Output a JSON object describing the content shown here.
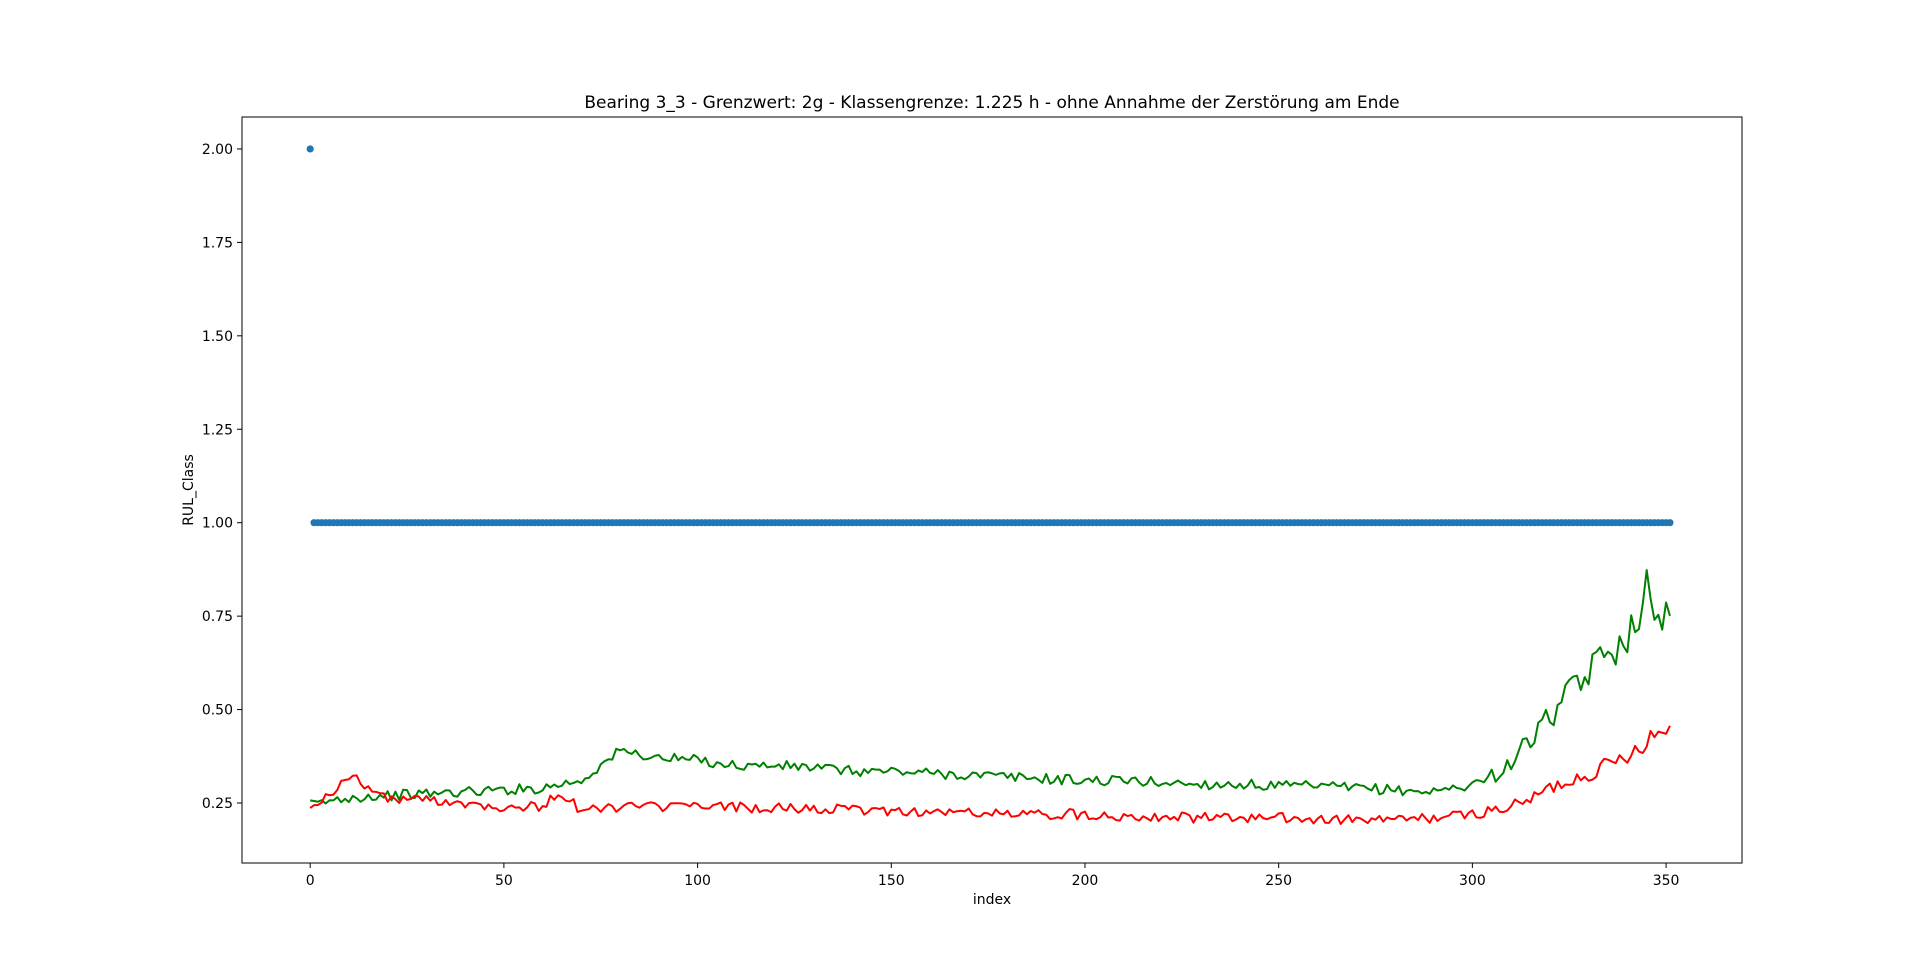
{
  "chart_data": {
    "type": "line",
    "title": "Bearing 3_3 - Grenzwert: 2g - Klassengrenze: 1.225 h - ohne Annahme der Zerstörung am Ende",
    "xlabel": "index",
    "ylabel": "RUL_Class",
    "xlim": [
      -17.6,
      369.6
    ],
    "ylim": [
      0.0895,
      2.0855
    ],
    "xticks": [
      0,
      50,
      100,
      150,
      200,
      250,
      300,
      350
    ],
    "xtick_labels": [
      "0",
      "50",
      "100",
      "150",
      "200",
      "250",
      "300",
      "350"
    ],
    "yticks": [
      0.25,
      0.5,
      0.75,
      1.0,
      1.25,
      1.5,
      1.75,
      2.0
    ],
    "ytick_labels": [
      "0.25",
      "0.50",
      "0.75",
      "1.00",
      "1.25",
      "1.50",
      "1.75",
      "2.00"
    ],
    "grid": false,
    "legend": "none",
    "series": [
      {
        "kind": "scatter",
        "color": "#1f77b4",
        "description": "index 0 = 2.0, indices 1-351 = 1.0",
        "first_value": 2.0,
        "rest_value": 1.0,
        "count": 352
      },
      {
        "kind": "line",
        "color": "#008000",
        "x": [
          0,
          10,
          20,
          30,
          40,
          50,
          60,
          64,
          70,
          75,
          80,
          85,
          90,
          100,
          110,
          120,
          130,
          140,
          150,
          160,
          170,
          180,
          190,
          200,
          210,
          220,
          230,
          240,
          250,
          260,
          270,
          280,
          290,
          295,
          300,
          305,
          310,
          315,
          320,
          325,
          330,
          335,
          340,
          345,
          347,
          350,
          351
        ],
        "y": [
          0.245,
          0.265,
          0.27,
          0.275,
          0.28,
          0.285,
          0.29,
          0.3,
          0.31,
          0.35,
          0.39,
          0.38,
          0.37,
          0.365,
          0.35,
          0.35,
          0.345,
          0.335,
          0.335,
          0.33,
          0.325,
          0.32,
          0.315,
          0.31,
          0.31,
          0.305,
          0.3,
          0.3,
          0.295,
          0.295,
          0.29,
          0.285,
          0.28,
          0.29,
          0.3,
          0.32,
          0.36,
          0.42,
          0.48,
          0.54,
          0.6,
          0.65,
          0.7,
          0.82,
          0.71,
          0.77,
          0.78
        ]
      },
      {
        "kind": "line",
        "color": "#ff0000",
        "x": [
          0,
          5,
          8,
          12,
          15,
          20,
          30,
          40,
          50,
          60,
          64,
          70,
          80,
          90,
          100,
          110,
          120,
          130,
          140,
          150,
          160,
          170,
          180,
          190,
          200,
          210,
          220,
          230,
          240,
          250,
          260,
          270,
          280,
          290,
          300,
          305,
          310,
          315,
          320,
          325,
          330,
          335,
          340,
          345,
          348,
          350,
          351
        ],
        "y": [
          0.245,
          0.27,
          0.3,
          0.32,
          0.29,
          0.26,
          0.26,
          0.25,
          0.24,
          0.24,
          0.28,
          0.23,
          0.24,
          0.24,
          0.24,
          0.24,
          0.235,
          0.235,
          0.23,
          0.23,
          0.225,
          0.225,
          0.22,
          0.22,
          0.22,
          0.215,
          0.215,
          0.21,
          0.21,
          0.21,
          0.205,
          0.205,
          0.205,
          0.21,
          0.22,
          0.23,
          0.24,
          0.26,
          0.29,
          0.31,
          0.33,
          0.35,
          0.38,
          0.42,
          0.44,
          0.45,
          0.445
        ]
      }
    ]
  }
}
